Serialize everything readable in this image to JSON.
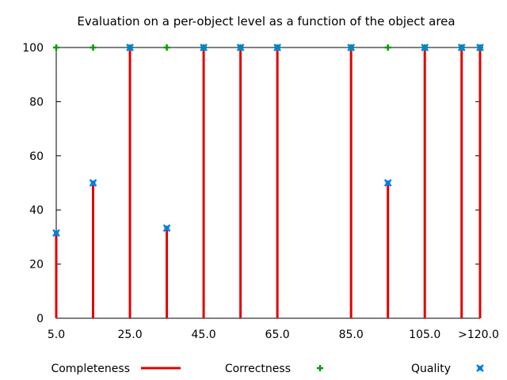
{
  "chart_data": {
    "type": "bar",
    "title": "Evaluation on a per-object level as a function of the object area",
    "xlabel": "",
    "ylabel": "",
    "xlim": [
      5,
      120
    ],
    "ylim": [
      0,
      100
    ],
    "x_ticks": [
      {
        "value": 5,
        "label": "5.0"
      },
      {
        "value": 25,
        "label": "25.0"
      },
      {
        "value": 45,
        "label": "45.0"
      },
      {
        "value": 65,
        "label": "65.0"
      },
      {
        "value": 85,
        "label": "85.0"
      },
      {
        "value": 105,
        "label": "105.0"
      },
      {
        "value": 120,
        "label": ">120.0"
      }
    ],
    "y_ticks": [
      {
        "value": 0,
        "label": "0"
      },
      {
        "value": 20,
        "label": "20"
      },
      {
        "value": 40,
        "label": "40"
      },
      {
        "value": 60,
        "label": "60"
      },
      {
        "value": 80,
        "label": "80"
      },
      {
        "value": 100,
        "label": "100"
      }
    ],
    "x": [
      5,
      15,
      25,
      35,
      45,
      55,
      65,
      85,
      95,
      105,
      115,
      120
    ],
    "series": [
      {
        "name": "Completeness",
        "style": "impulse",
        "color": "#e00000",
        "values": [
          31.5,
          50,
          100,
          33.3,
          100,
          100,
          100,
          100,
          50,
          100,
          100,
          100
        ]
      },
      {
        "name": "Correctness",
        "style": "plus",
        "color": "#00a000",
        "values": [
          100,
          100,
          100,
          100,
          100,
          100,
          100,
          100,
          100,
          100,
          100,
          100
        ]
      },
      {
        "name": "Quality",
        "style": "cross",
        "color": "#0080e0",
        "values": [
          31.5,
          50,
          100,
          33.3,
          100,
          100,
          100,
          100,
          50,
          100,
          100,
          100
        ]
      }
    ],
    "grid": false,
    "legend_position": "bottom"
  }
}
